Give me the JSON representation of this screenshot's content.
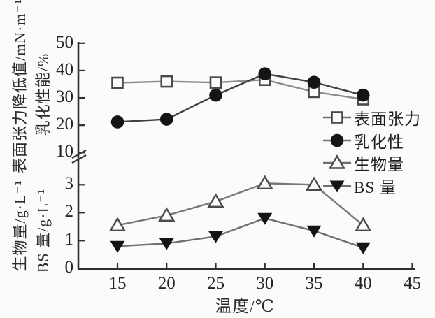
{
  "figure": {
    "background": "#fbfbfa",
    "axis_color": "#2f2f2f",
    "text_color": "#242424",
    "x_axis": {
      "label": "温度/℃",
      "ticks": [
        15,
        20,
        25,
        30,
        35,
        40,
        45
      ]
    },
    "y_axis_top": {
      "label_outer": "表面张力降低值/mN·m⁻¹",
      "label_inner": "乳化性能/%",
      "ticks": [
        50,
        40,
        30,
        20,
        10
      ],
      "axis_break": true
    },
    "y_axis_bottom": {
      "label_outer": "生物量/g·L⁻¹",
      "label_inner": "BS 量/g·L⁻¹",
      "ticks": [
        3,
        2,
        1,
        0
      ]
    },
    "legend": [
      {
        "id": "surface-tension",
        "label": "表面张力",
        "marker": "square-open"
      },
      {
        "id": "emulsification",
        "label": "乳化性",
        "marker": "circle-filled"
      },
      {
        "id": "biomass",
        "label": "生物量",
        "marker": "triangle-up-open"
      },
      {
        "id": "bs-amount",
        "label": "BS 量",
        "marker": "triangle-down-filled"
      }
    ]
  },
  "chart_data": {
    "type": "line",
    "x": [
      15,
      20,
      25,
      30,
      35,
      40
    ],
    "xlabel": "温度/℃",
    "xlim": [
      10,
      45
    ],
    "ylim_top": [
      10,
      50
    ],
    "ylim_bottom": [
      0,
      3.2
    ],
    "axis_break": true,
    "grid": false,
    "legend_position": "right-middle",
    "ylabel_top": "表面张力降低值/mN·m⁻¹ 乳化性能/%",
    "ylabel_bottom": "生物量/g·L⁻¹ BS 量/g·L⁻¹",
    "series": [
      {
        "id": "surface-tension",
        "name": "表面张力",
        "axis": "top",
        "marker": "square-open",
        "line_color": "#8c8c8c",
        "values": [
          35.5,
          36.0,
          35.6,
          36.6,
          32.2,
          29.5
        ]
      },
      {
        "id": "emulsification",
        "name": "乳化性",
        "axis": "top",
        "marker": "circle-filled",
        "line_color": "#3f3f3f",
        "values": [
          21.2,
          22.2,
          31.0,
          38.8,
          35.7,
          31.0
        ]
      },
      {
        "id": "biomass",
        "name": "生物量",
        "axis": "bottom",
        "marker": "triangle-up-open",
        "line_color": "#787878",
        "values": [
          1.55,
          1.9,
          2.4,
          3.05,
          3.0,
          1.55
        ]
      },
      {
        "id": "bs-amount",
        "name": "BS 量",
        "axis": "bottom",
        "marker": "triangle-down-filled",
        "line_color": "#6f6f6f",
        "values": [
          0.8,
          0.9,
          1.15,
          1.8,
          1.35,
          0.75
        ]
      }
    ]
  }
}
